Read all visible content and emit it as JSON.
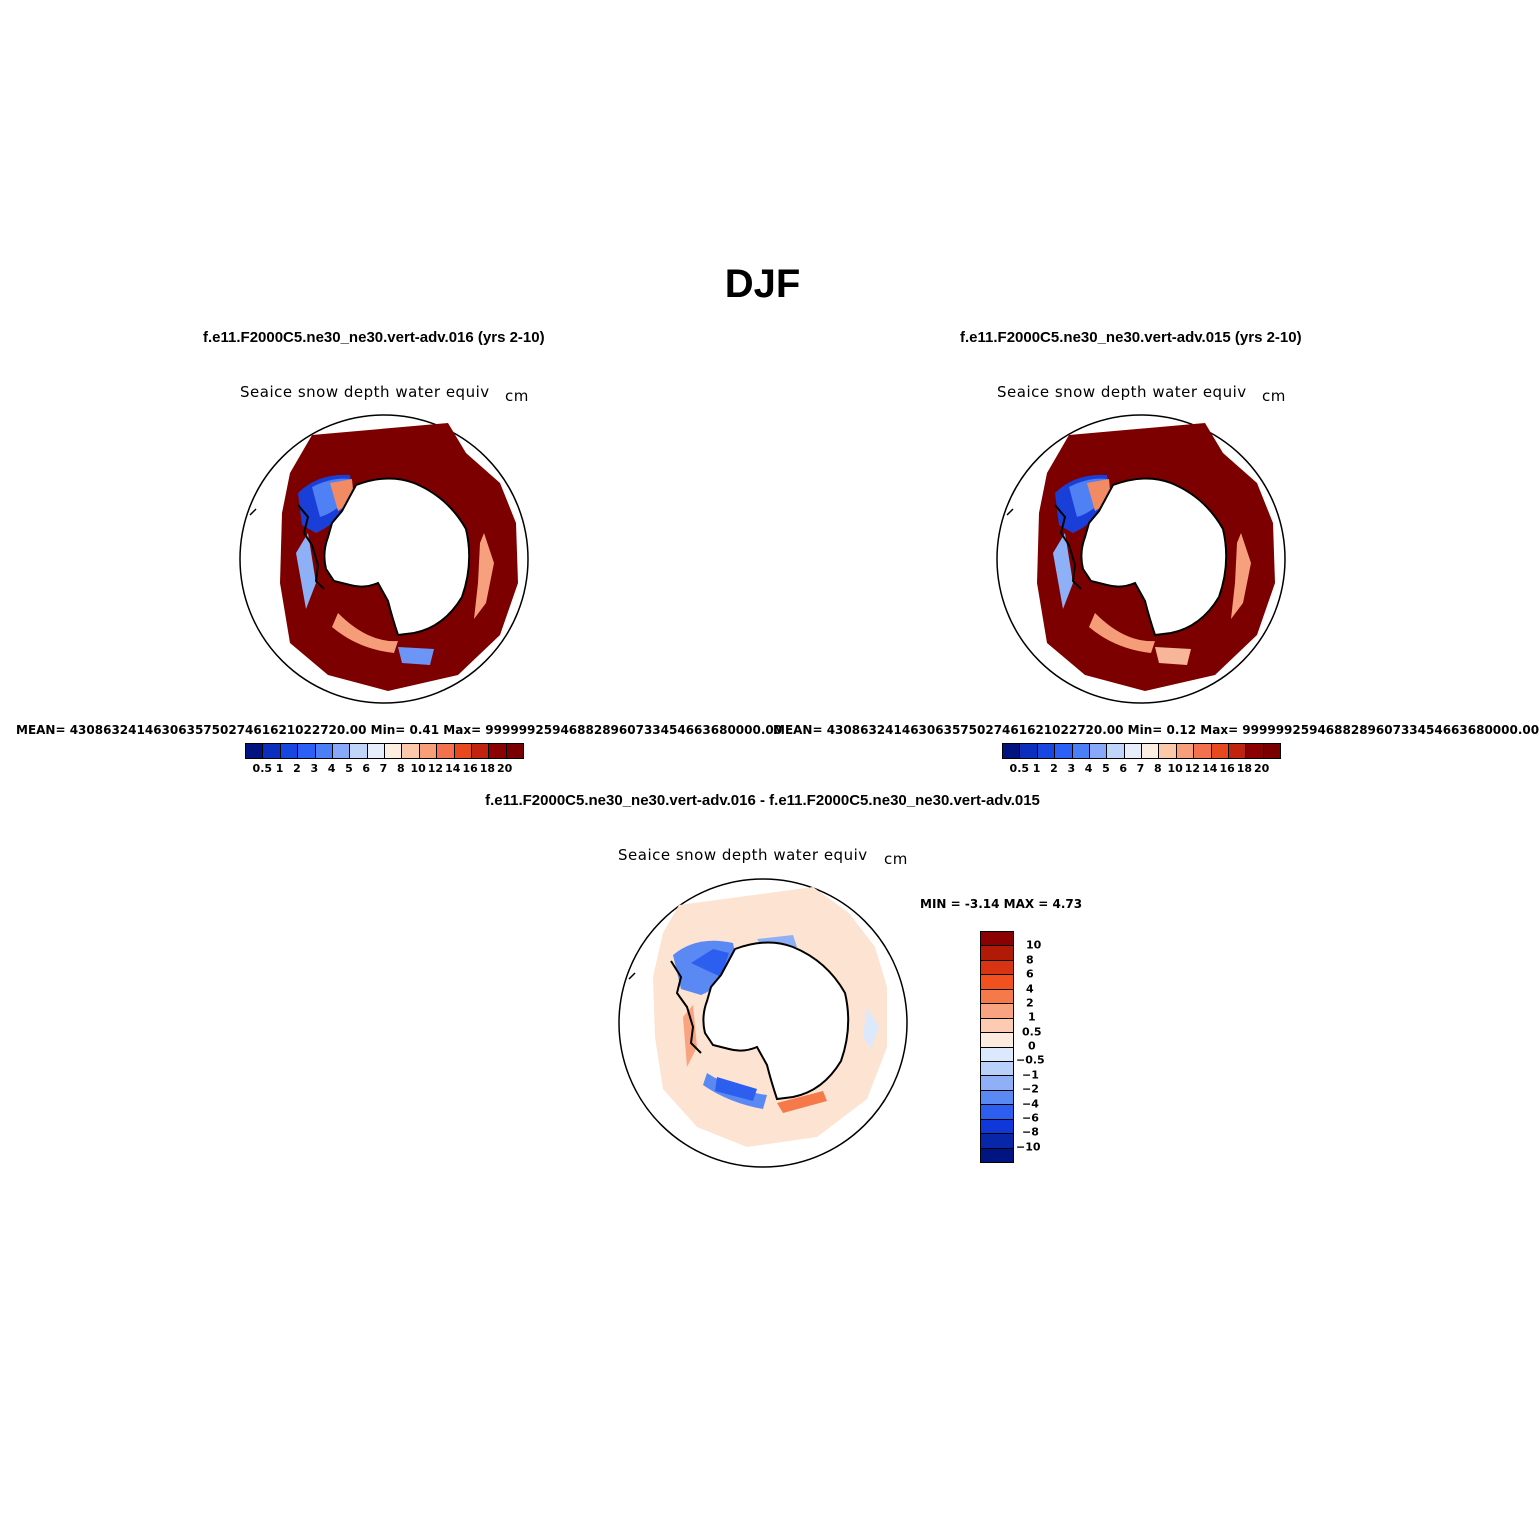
{
  "figure": {
    "title": "DJF",
    "variable_label": "Seaice snow depth water equiv",
    "units": "cm"
  },
  "panels": [
    {
      "case": "f.e11.F2000C5.ne30_ne30.vert-adv.016 (yrs 2-10)",
      "stats": "MEAN= 430863241463063575027461621022720.00   Min=     0.41   Max=  999999259468828960733454663680000.00",
      "colorbar_labels": [
        "0.5",
        "1",
        "2",
        "3",
        "4",
        "5",
        "6",
        "7",
        "8",
        "10",
        "12",
        "14",
        "16",
        "18",
        "20"
      ]
    },
    {
      "case": "f.e11.F2000C5.ne30_ne30.vert-adv.015 (yrs 2-10)",
      "stats": "MEAN= 430863241463063575027461621022720.00   Min=     0.12   Max=  999999259468828960733454663680000.00",
      "colorbar_labels": [
        "0.5",
        "1",
        "2",
        "3",
        "4",
        "5",
        "6",
        "7",
        "8",
        "10",
        "12",
        "14",
        "16",
        "18",
        "20"
      ]
    }
  ],
  "diff_panel": {
    "case": "f.e11.F2000C5.ne30_ne30.vert-adv.016 - f.e11.F2000C5.ne30_ne30.vert-adv.015",
    "stats": "MIN =   -3.14  MAX =     4.73",
    "colorbar_labels": [
      "10",
      "8",
      "6",
      "4",
      "2",
      "1",
      "0.5",
      "0",
      "−0.5",
      "−1",
      "−2",
      "−4",
      "−6",
      "−8",
      "−10"
    ]
  },
  "colors": {
    "abs_scale": [
      "#00137f",
      "#0a2fbd",
      "#1746e0",
      "#2b5ff5",
      "#4a7ff7",
      "#87a9f7",
      "#bfd5fa",
      "#e6eefc",
      "#fdeee2",
      "#fbc8aa",
      "#f89f7a",
      "#f47150",
      "#e8481e",
      "#c0230e",
      "#8b0000",
      "#7a0000"
    ],
    "diff_scale": [
      "#8b0000",
      "#b01a06",
      "#d83312",
      "#f0511f",
      "#f6794a",
      "#f9a480",
      "#fccbb1",
      "#fdebe0",
      "#dce8fb",
      "#b9d0fa",
      "#8fb0f7",
      "#5a89f4",
      "#2c5ff0",
      "#1038d8",
      "#0726a8",
      "#001582"
    ],
    "land": "#ffffff",
    "coast": "#000000"
  }
}
